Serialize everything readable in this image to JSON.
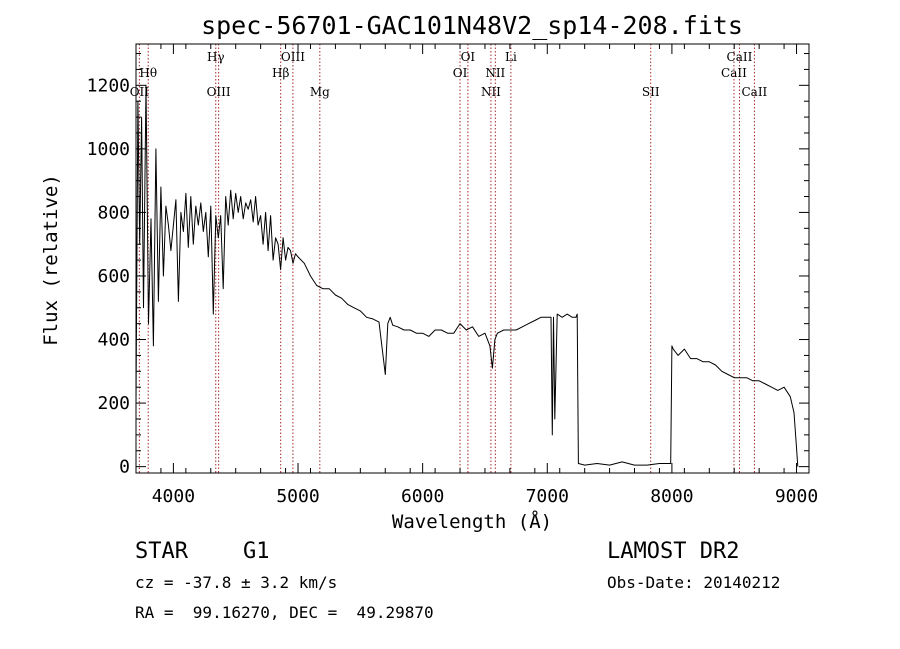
{
  "chart_data": {
    "type": "line",
    "title": "spec-56701-GAC101N48V2_sp14-208.fits",
    "xlabel": "Wavelength (Å)",
    "ylabel": "Flux (relative)",
    "xlim": [
      3700,
      9100
    ],
    "ylim": [
      -20,
      1330
    ],
    "xticks": [
      4000,
      5000,
      6000,
      7000,
      8000,
      9000
    ],
    "yticks": [
      0,
      200,
      400,
      600,
      800,
      1000,
      1200
    ],
    "series": [
      {
        "name": "spectrum",
        "x": [
          3700,
          3715,
          3730,
          3745,
          3760,
          3780,
          3800,
          3820,
          3840,
          3860,
          3880,
          3900,
          3920,
          3940,
          3960,
          3980,
          4000,
          4020,
          4040,
          4060,
          4080,
          4100,
          4120,
          4140,
          4160,
          4180,
          4200,
          4220,
          4240,
          4260,
          4280,
          4300,
          4320,
          4340,
          4360,
          4380,
          4400,
          4420,
          4440,
          4460,
          4480,
          4500,
          4520,
          4540,
          4560,
          4580,
          4600,
          4620,
          4640,
          4660,
          4680,
          4700,
          4720,
          4740,
          4760,
          4780,
          4800,
          4820,
          4840,
          4860,
          4880,
          4900,
          4920,
          4940,
          4960,
          4980,
          5000,
          5050,
          5100,
          5150,
          5200,
          5250,
          5300,
          5350,
          5400,
          5450,
          5500,
          5550,
          5600,
          5650,
          5700,
          5720,
          5740,
          5760,
          5800,
          5850,
          5900,
          5950,
          6000,
          6050,
          6100,
          6150,
          6200,
          6250,
          6300,
          6350,
          6400,
          6450,
          6500,
          6540,
          6560,
          6580,
          6600,
          6650,
          6700,
          6750,
          6800,
          6850,
          6900,
          6950,
          7000,
          7030,
          7040,
          7050,
          7060,
          7080,
          7120,
          7160,
          7200,
          7230,
          7240,
          7250,
          7300,
          7400,
          7500,
          7600,
          7700,
          7800,
          7900,
          7990,
          8000,
          8010,
          8050,
          8100,
          8150,
          8200,
          8250,
          8300,
          8350,
          8400,
          8450,
          8500,
          8550,
          8600,
          8650,
          8700,
          8750,
          8800,
          8850,
          8900,
          8950,
          8980,
          9000,
          9010
        ],
        "values": [
          200,
          1150,
          700,
          1100,
          500,
          1200,
          450,
          780,
          380,
          1000,
          520,
          880,
          600,
          820,
          760,
          680,
          760,
          840,
          520,
          800,
          740,
          860,
          690,
          850,
          700,
          820,
          760,
          830,
          740,
          800,
          660,
          820,
          480,
          790,
          720,
          790,
          560,
          850,
          760,
          870,
          780,
          860,
          800,
          850,
          780,
          830,
          810,
          840,
          770,
          850,
          760,
          790,
          700,
          800,
          680,
          790,
          650,
          720,
          700,
          620,
          720,
          650,
          690,
          680,
          640,
          670,
          660,
          640,
          600,
          570,
          560,
          560,
          540,
          530,
          510,
          500,
          490,
          470,
          465,
          455,
          290,
          450,
          470,
          445,
          440,
          430,
          430,
          420,
          420,
          410,
          430,
          430,
          420,
          420,
          450,
          430,
          440,
          410,
          420,
          380,
          310,
          400,
          420,
          430,
          430,
          430,
          440,
          450,
          460,
          470,
          470,
          470,
          100,
          470,
          150,
          480,
          470,
          480,
          470,
          470,
          480,
          10,
          5,
          10,
          5,
          15,
          5,
          5,
          10,
          10,
          380,
          370,
          350,
          370,
          340,
          340,
          330,
          330,
          320,
          300,
          290,
          280,
          280,
          280,
          270,
          270,
          260,
          250,
          240,
          250,
          220,
          170,
          60,
          0
        ]
      }
    ],
    "spectral_lines": [
      {
        "label": "Hθ",
        "x": 3798,
        "row": 3
      },
      {
        "label": "OII",
        "x": 3727,
        "row": 4
      },
      {
        "label": "Hγ",
        "x": 4340,
        "row": 1
      },
      {
        "label": "OIII",
        "x": 4363,
        "row": 4
      },
      {
        "label": "OIII",
        "x": 4959,
        "row": 1
      },
      {
        "label": "Hβ",
        "x": 4861,
        "row": 3
      },
      {
        "label": "Mg",
        "x": 5175,
        "row": 4
      },
      {
        "label": "OI",
        "x": 6363,
        "row": 1
      },
      {
        "label": "OI",
        "x": 6300,
        "row": 3
      },
      {
        "label": "NII",
        "x": 6583,
        "row": 3
      },
      {
        "label": "Li",
        "x": 6708,
        "row": 1
      },
      {
        "label": "NII",
        "x": 6548,
        "row": 4
      },
      {
        "label": "SII",
        "x": 7830,
        "row": 4
      },
      {
        "label": "CaII",
        "x": 8542,
        "row": 1
      },
      {
        "label": "CaII",
        "x": 8498,
        "row": 3
      },
      {
        "label": "CaII",
        "x": 8662,
        "row": 4
      }
    ]
  },
  "info": {
    "object_class": "STAR",
    "subclass": "G1",
    "survey": "LAMOST DR2",
    "redshift": "cz = -37.8 ± 3.2 km/s",
    "obs_date": "Obs-Date: 20140212",
    "coords": "RA =  99.16270, DEC =  49.29870"
  },
  "colors": {
    "line_marker": "#a52a2a",
    "spectrum": "#000000"
  }
}
